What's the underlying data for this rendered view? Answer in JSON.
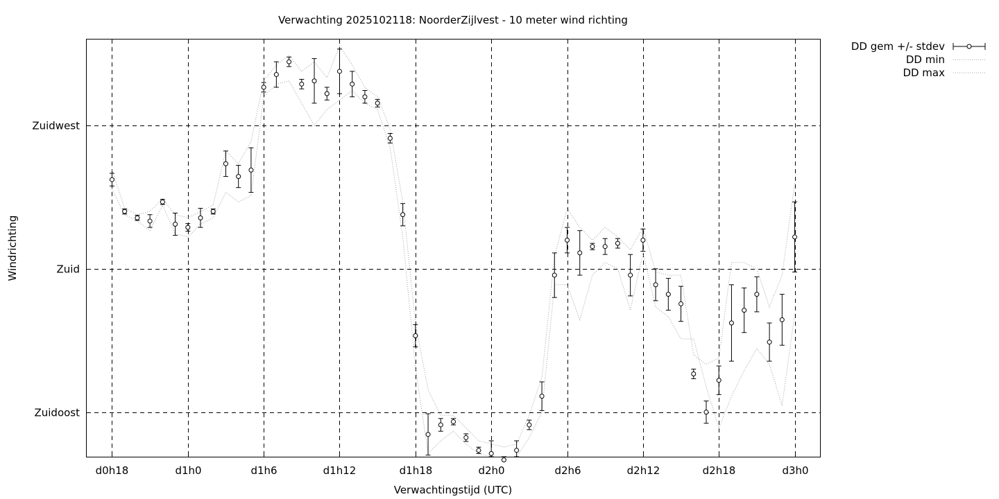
{
  "chart_data": {
    "type": "line",
    "title": "Verwachting 2025102118: NoorderZijlvest - 10 meter wind richting",
    "xlabel": "Verwachtingstijd (UTC)",
    "ylabel": "Windrichting",
    "x_ticks": [
      {
        "hour": 0,
        "label": "d0h18"
      },
      {
        "hour": 6,
        "label": "d1h0"
      },
      {
        "hour": 12,
        "label": "d1h6"
      },
      {
        "hour": 18,
        "label": "d1h12"
      },
      {
        "hour": 24,
        "label": "d1h18"
      },
      {
        "hour": 30,
        "label": "d2h0"
      },
      {
        "hour": 36,
        "label": "d2h6"
      },
      {
        "hour": 42,
        "label": "d2h12"
      },
      {
        "hour": 48,
        "label": "d2h18"
      },
      {
        "hour": 54,
        "label": "d3h0"
      }
    ],
    "y_ticks": [
      {
        "value": 135,
        "label": "Zuidoost"
      },
      {
        "value": 180,
        "label": "Zuid"
      },
      {
        "value": 225,
        "label": "Zuidwest"
      }
    ],
    "xlim": [
      -2,
      56
    ],
    "ylim": [
      121,
      252
    ],
    "grid": true,
    "legend_position": "outside-top-right",
    "series": [
      {
        "name": "DD gem +/- stdev",
        "style": "errorbars",
        "x": [
          0,
          1,
          2,
          3,
          4,
          5,
          6,
          7,
          8,
          9,
          10,
          11,
          12,
          13,
          14,
          15,
          16,
          17,
          18,
          19,
          20,
          21,
          22,
          23,
          24,
          25,
          26,
          27,
          28,
          29,
          30,
          31,
          32,
          33,
          34,
          35,
          36,
          37,
          38,
          39,
          40,
          41,
          42,
          43,
          44,
          45,
          46,
          47,
          48,
          49,
          50,
          51,
          52,
          53,
          54
        ],
        "y": [
          208,
          198,
          196,
          195,
          201,
          194,
          193,
          196,
          198,
          213,
          209,
          211,
          237,
          241,
          245,
          238,
          239,
          235,
          242,
          238,
          234,
          232,
          221,
          197,
          159,
          128,
          131,
          132,
          127,
          123,
          122,
          120,
          123,
          131,
          140,
          178,
          189,
          185,
          187,
          187,
          188,
          178,
          189,
          175,
          172,
          169,
          147,
          135,
          145,
          163,
          167,
          172,
          157,
          164,
          190
        ],
        "err": [
          2,
          0.8,
          0.8,
          2,
          0.8,
          3.5,
          1.2,
          3,
          0.8,
          4,
          3.5,
          7,
          1.5,
          4,
          1.5,
          1.5,
          7,
          2,
          7,
          4,
          2,
          1.2,
          1.5,
          3.5,
          3.5,
          6.5,
          2,
          1,
          1.2,
          1,
          4,
          1,
          3,
          1.5,
          4.5,
          7,
          4,
          7,
          1,
          2.5,
          1.5,
          6.5,
          3.5,
          5,
          5,
          5.5,
          1.5,
          3.5,
          4.5,
          12,
          7,
          5.5,
          6,
          8,
          11
        ]
      },
      {
        "name": "DD min",
        "style": "dotted",
        "x": [
          0,
          1,
          2,
          3,
          4,
          5,
          6,
          7,
          8,
          9,
          10,
          11,
          12,
          13,
          14,
          15,
          16,
          17,
          18,
          19,
          20,
          21,
          22,
          23,
          24,
          25,
          26,
          27,
          28,
          29,
          30,
          31,
          32,
          33,
          34,
          35,
          36,
          37,
          38,
          39,
          40,
          41,
          42,
          43,
          44,
          45,
          46,
          47,
          48,
          49,
          50,
          51,
          52,
          53,
          54
        ],
        "y": [
          205,
          197,
          195,
          192,
          200,
          191,
          190,
          194,
          196,
          204,
          201,
          203,
          234,
          238,
          239,
          232,
          225,
          230,
          233,
          236,
          232,
          230,
          218,
          190,
          149,
          122,
          126,
          129,
          125,
          122,
          120,
          118,
          120,
          127,
          135,
          175,
          175,
          164,
          178,
          182,
          180,
          167,
          185,
          168,
          165,
          158,
          158,
          143,
          130,
          140,
          148,
          155,
          150,
          137,
          166
        ]
      },
      {
        "name": "DD max",
        "style": "dotted",
        "x": [
          0,
          1,
          2,
          3,
          4,
          5,
          6,
          7,
          8,
          9,
          10,
          11,
          12,
          13,
          14,
          15,
          16,
          17,
          18,
          19,
          20,
          21,
          22,
          23,
          24,
          25,
          26,
          27,
          28,
          29,
          30,
          31,
          32,
          33,
          34,
          35,
          36,
          37,
          38,
          39,
          40,
          41,
          42,
          43,
          44,
          45,
          46,
          47,
          48,
          49,
          50,
          51,
          52,
          53,
          54
        ],
        "y": [
          211,
          199,
          197,
          198,
          202,
          197,
          196,
          198,
          200,
          217,
          213,
          220,
          239,
          244,
          247,
          242,
          245,
          240,
          250,
          244,
          237,
          234,
          224,
          201,
          163,
          142,
          134,
          134,
          130,
          126,
          125,
          124,
          125,
          134,
          146,
          184,
          199,
          193,
          189,
          193,
          190,
          186,
          193,
          179,
          178,
          178,
          153,
          150,
          152,
          182,
          182,
          180,
          168,
          178,
          207
        ]
      }
    ]
  }
}
